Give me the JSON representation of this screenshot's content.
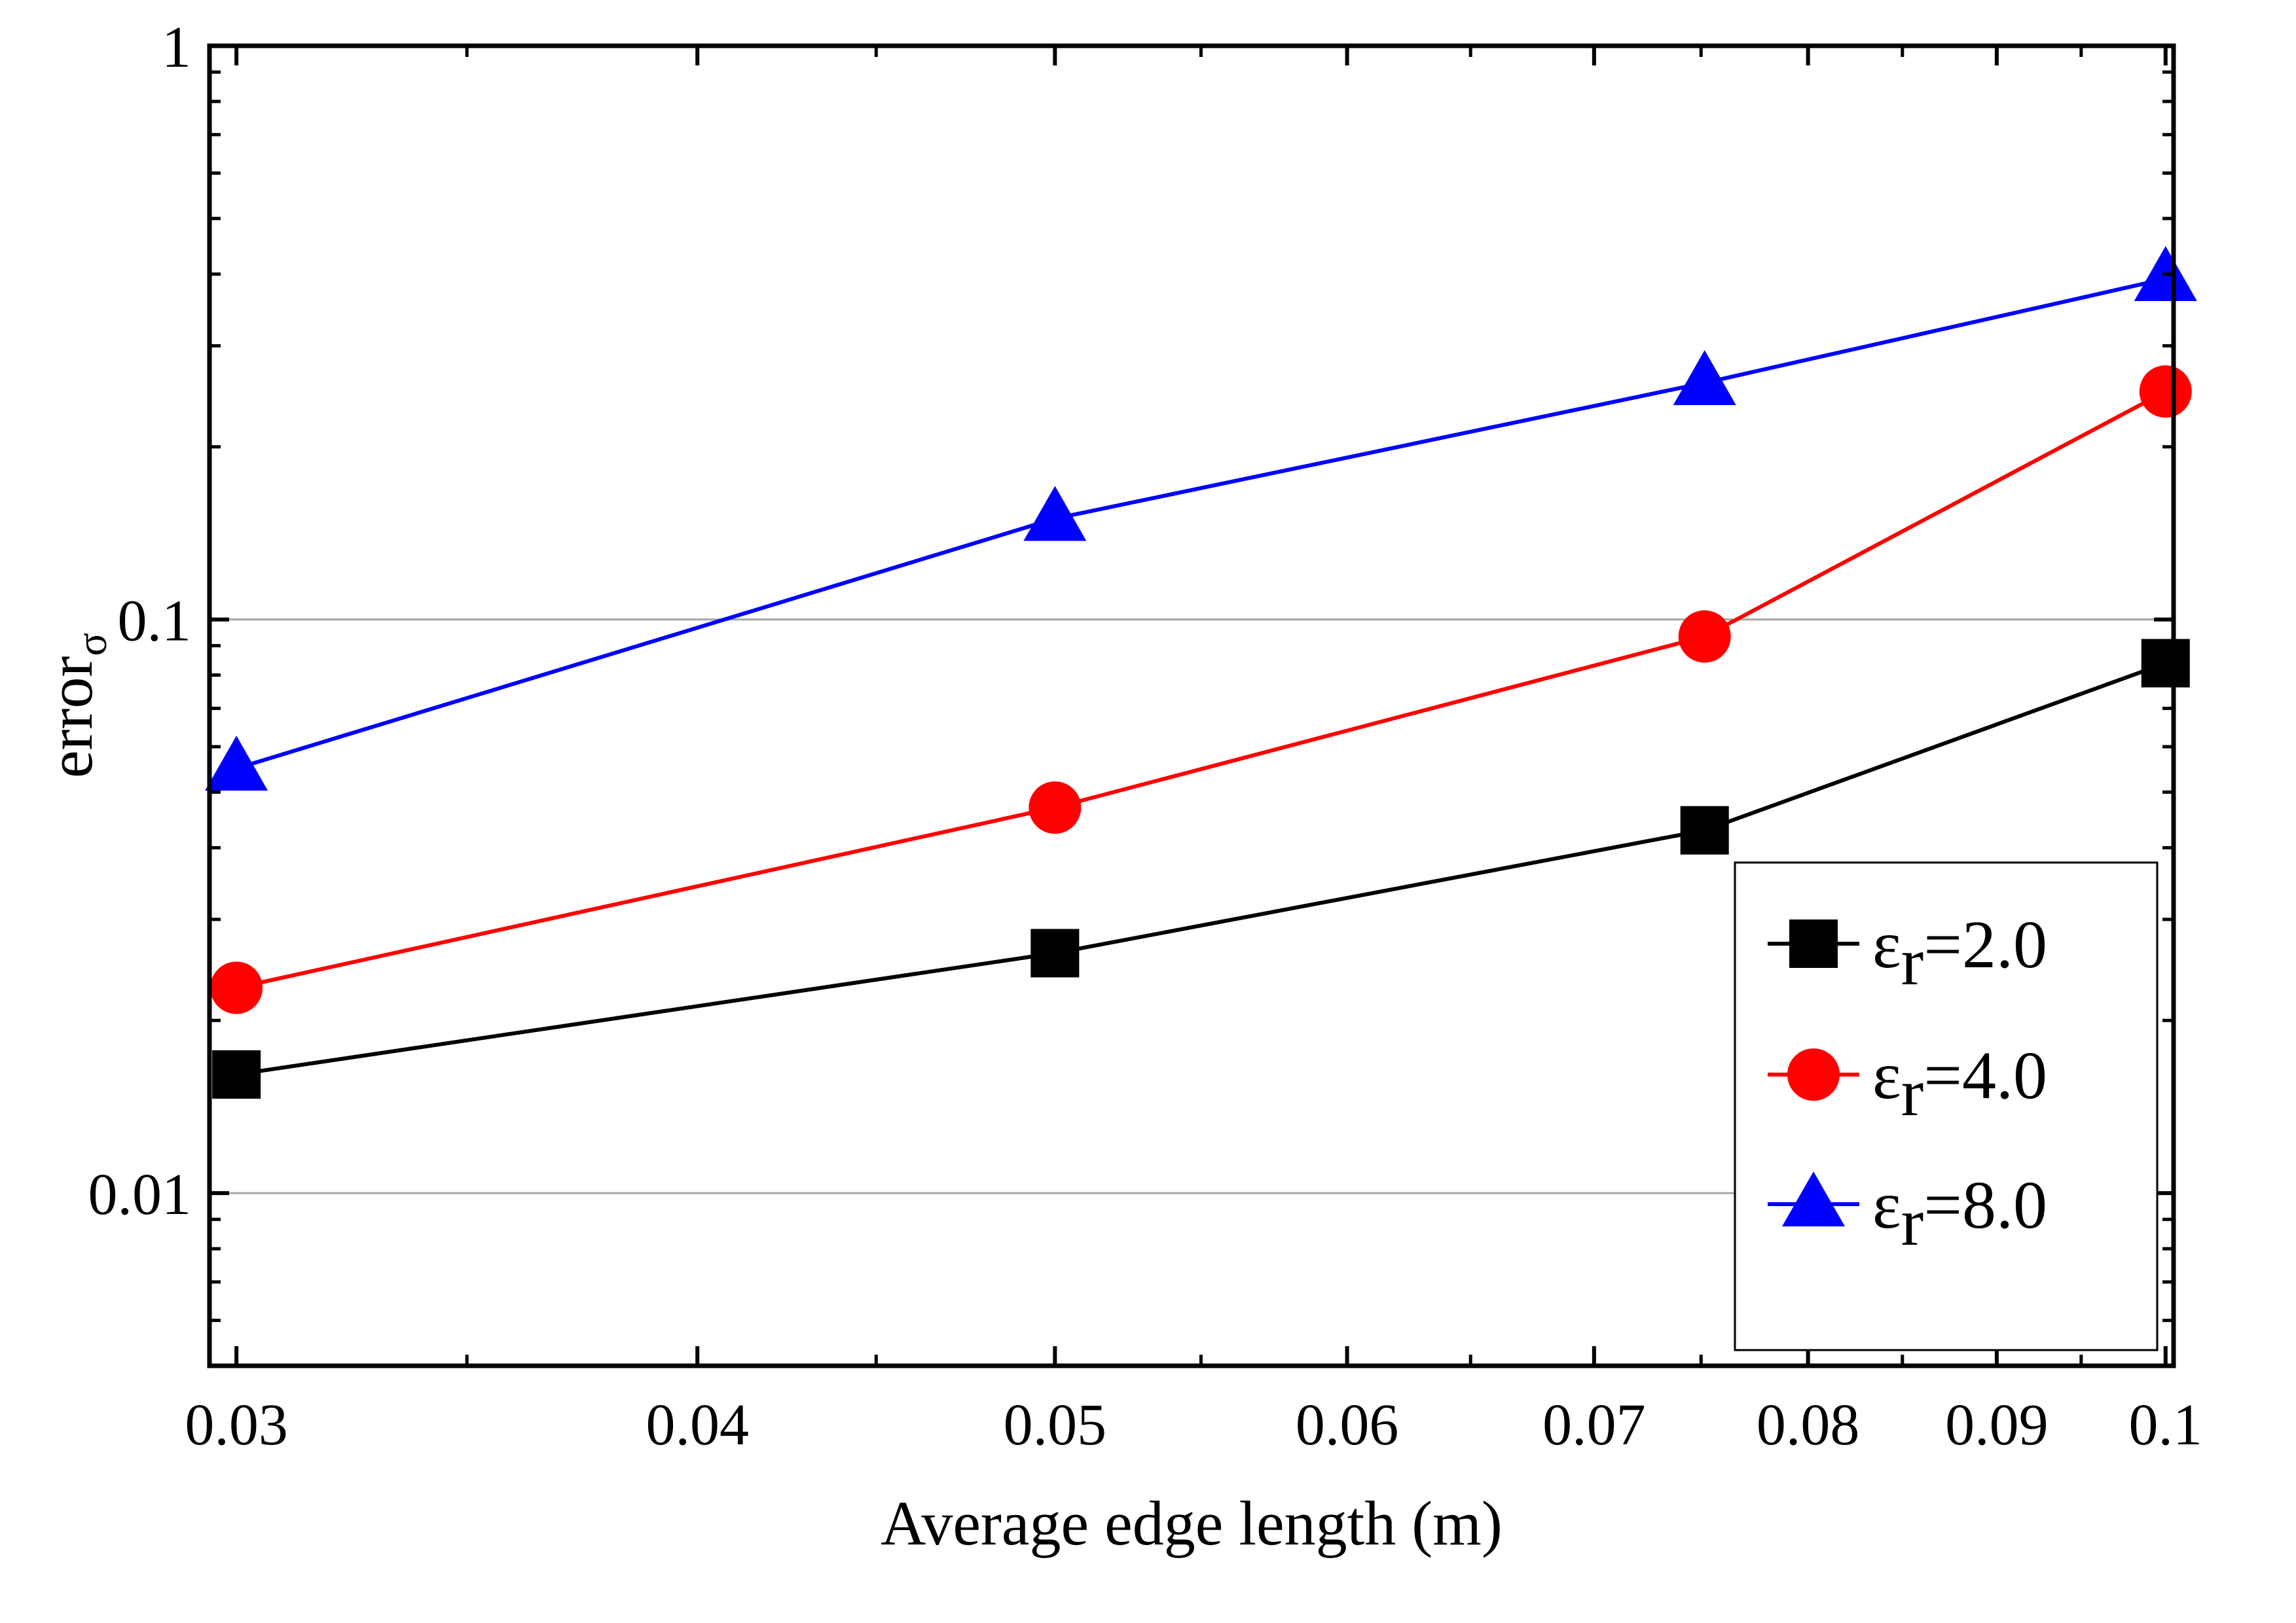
{
  "chart_data": {
    "type": "line",
    "title": "",
    "xlabel": "Average edge length (m)",
    "ylabel_main": "error",
    "ylabel_sub": "σ",
    "xscale": "log",
    "yscale": "log",
    "xlim": [
      0.0295,
      0.1005
    ],
    "ylim": [
      0.005,
      1
    ],
    "x_ticks": [
      0.03,
      0.04,
      0.05,
      0.06,
      0.07,
      0.08,
      0.09,
      0.1
    ],
    "x_tick_labels": [
      "0.03",
      "0.04",
      "0.05",
      "0.06",
      "0.07",
      "0.08",
      "0.09",
      "0.1"
    ],
    "y_ticks": [
      0.01,
      0.1,
      1
    ],
    "y_tick_labels": [
      "0.01",
      "0.1",
      "1"
    ],
    "grid": "horizontal at major y ticks",
    "legend_position": "bottom-right",
    "x": [
      0.03,
      0.05,
      0.075,
      0.1
    ],
    "series": [
      {
        "name": "εr=2.0",
        "symbol": "ε",
        "subscript": "r",
        "value_label": "=2.0",
        "color": "#000000",
        "marker": "square",
        "values": [
          0.0161,
          0.0262,
          0.0429,
          0.0839
        ]
      },
      {
        "name": "εr=4.0",
        "symbol": "ε",
        "subscript": "r",
        "value_label": "=4.0",
        "color": "#ff0000",
        "marker": "circle",
        "values": [
          0.0228,
          0.047,
          0.0934,
          0.2497
        ]
      },
      {
        "name": "εr=8.0",
        "symbol": "ε",
        "subscript": "r",
        "value_label": "=8.0",
        "color": "#0000ff",
        "marker": "triangle",
        "values": [
          0.055,
          0.1499,
          0.2585,
          0.3925
        ]
      }
    ]
  }
}
